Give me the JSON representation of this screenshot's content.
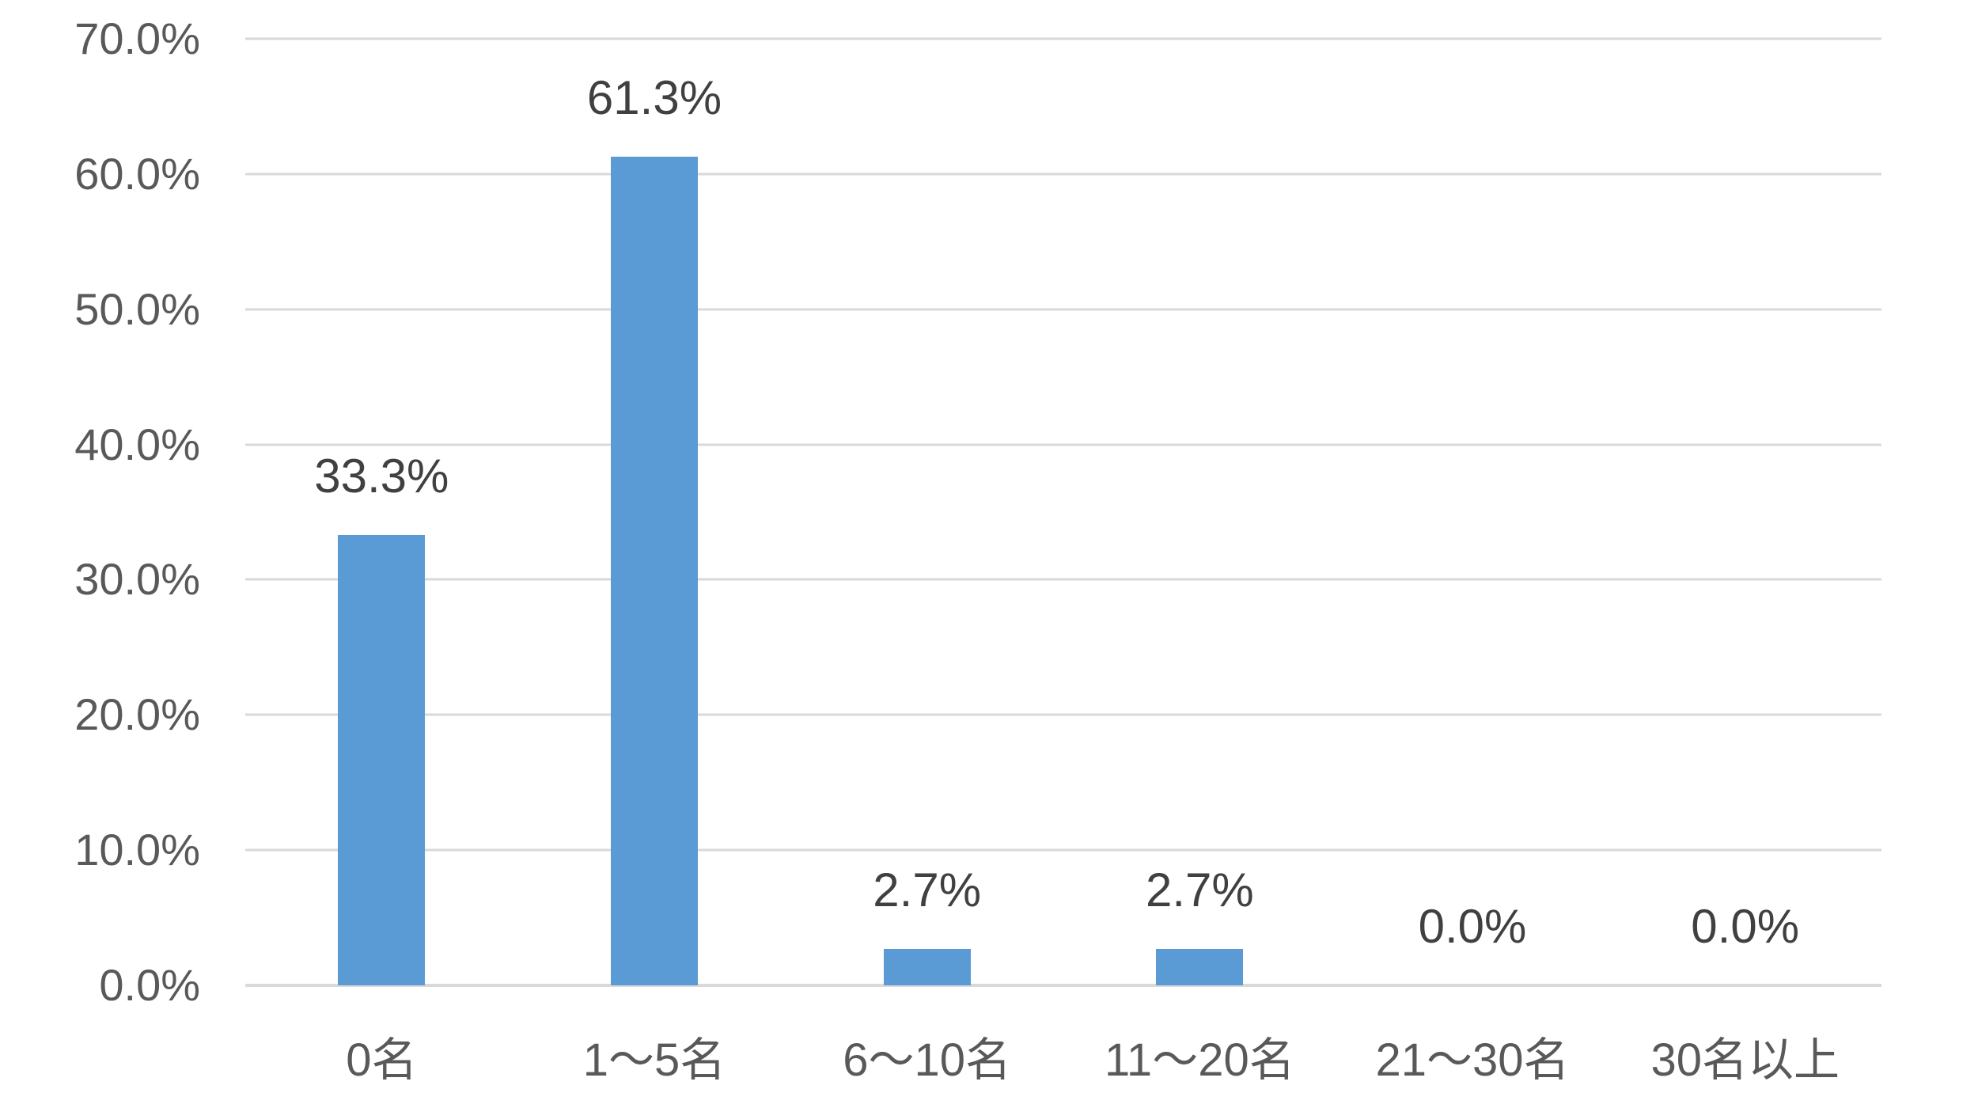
{
  "chart_data": {
    "type": "bar",
    "title": "",
    "xlabel": "",
    "ylabel": "",
    "categories": [
      "0名",
      "1～5名",
      "6～10名",
      "11～20名",
      "21～30名",
      "30名以上"
    ],
    "values": [
      33.3,
      61.3,
      2.7,
      2.7,
      0.0,
      0.0
    ],
    "data_labels": [
      "33.3%",
      "61.3%",
      "2.7%",
      "2.7%",
      "0.0%",
      "0.0%"
    ],
    "ytick_values": [
      0,
      10,
      20,
      30,
      40,
      50,
      60,
      70
    ],
    "ytick_labels": [
      "0.0%",
      "10.0%",
      "20.0%",
      "30.0%",
      "40.0%",
      "50.0%",
      "60.0%",
      "70.0%"
    ],
    "ylim": [
      0,
      70
    ],
    "grid": true,
    "legend": "none",
    "colors": {
      "bar": "#5B9BD5",
      "gridline": "#D9D9D9",
      "axis_line": "#D9D9D9",
      "tick_text": "#595959",
      "data_label_text": "#404040",
      "background": "#FFFFFF"
    }
  }
}
